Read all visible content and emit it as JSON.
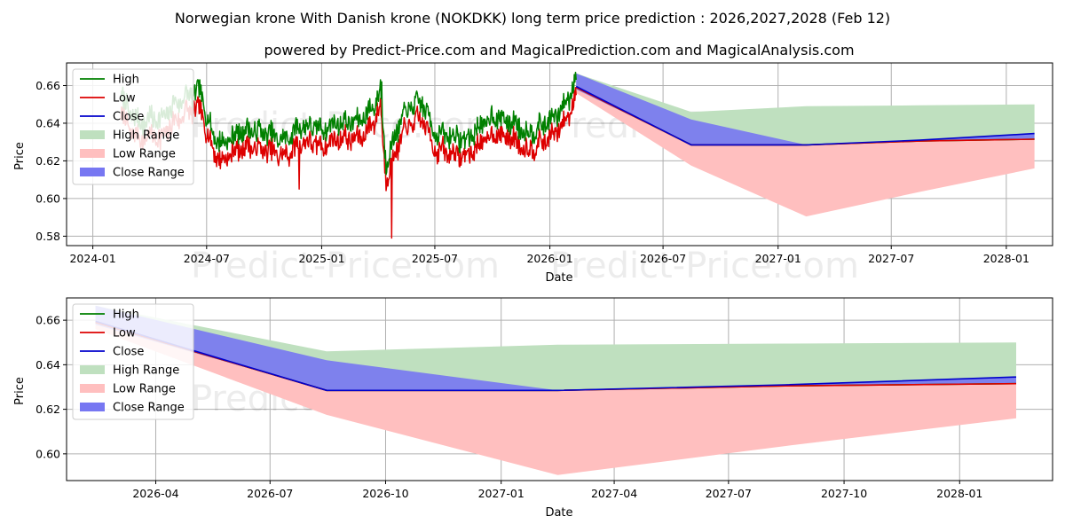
{
  "title": "Norwegian krone With Danish krone (NOKDKK) long term price prediction : 2026,2027,2028 (Feb 12)",
  "subtitle": "powered by Predict-Price.com and MagicalPrediction.com and MagicalAnalysis.com",
  "watermark": "Predict-Price.com",
  "colors": {
    "high": "#008000",
    "low": "#dd0000",
    "close": "#0000cc",
    "high_range": "#bfe0bf",
    "low_range": "#ffbfbf",
    "close_range": "#7777f2"
  },
  "legend": [
    "High",
    "Low",
    "Close",
    "High Range",
    "Low Range",
    "Close Range"
  ],
  "chart_data": [
    {
      "type": "line",
      "name": "history-and-forecast",
      "xlabel": "Date",
      "ylabel": "Price",
      "xlim": [
        "2023-11-20",
        "2028-03-15"
      ],
      "ylim": [
        0.575,
        0.672
      ],
      "x_ticks": [
        "2024-01",
        "2024-07",
        "2025-01",
        "2025-07",
        "2026-01",
        "2026-07",
        "2027-01",
        "2027-07",
        "2028-01"
      ],
      "y_ticks": [
        0.58,
        0.6,
        0.62,
        0.64,
        0.66
      ],
      "y_tick_labels": [
        "0.58",
        "0.60",
        "0.62",
        "0.64",
        "0.66"
      ],
      "legend_position": "top-left",
      "grid": true,
      "history_anchors": [
        [
          "2024-02-15",
          0.65
        ],
        [
          "2024-03-01",
          0.64
        ],
        [
          "2024-03-20",
          0.635
        ],
        [
          "2024-04-05",
          0.638
        ],
        [
          "2024-04-20",
          0.636
        ],
        [
          "2024-05-10",
          0.645
        ],
        [
          "2024-06-01",
          0.65
        ],
        [
          "2024-06-20",
          0.652
        ],
        [
          "2024-07-01",
          0.64
        ],
        [
          "2024-07-10",
          0.63
        ],
        [
          "2024-07-25",
          0.624
        ],
        [
          "2024-08-10",
          0.628
        ],
        [
          "2024-09-01",
          0.632
        ],
        [
          "2024-10-01",
          0.63
        ],
        [
          "2024-11-01",
          0.626
        ],
        [
          "2024-12-01",
          0.634
        ],
        [
          "2025-01-01",
          0.632
        ],
        [
          "2025-02-01",
          0.636
        ],
        [
          "2025-03-01",
          0.636
        ],
        [
          "2025-03-25",
          0.644
        ],
        [
          "2025-04-05",
          0.654
        ],
        [
          "2025-04-10",
          0.628
        ],
        [
          "2025-04-14",
          0.615
        ],
        [
          "2025-04-22",
          0.622
        ],
        [
          "2025-05-10",
          0.638
        ],
        [
          "2025-05-25",
          0.644
        ],
        [
          "2025-06-10",
          0.646
        ],
        [
          "2025-06-20",
          0.64
        ],
        [
          "2025-07-01",
          0.63
        ],
        [
          "2025-08-01",
          0.628
        ],
        [
          "2025-08-20",
          0.626
        ],
        [
          "2025-09-10",
          0.633
        ],
        [
          "2025-10-01",
          0.638
        ],
        [
          "2025-11-01",
          0.636
        ],
        [
          "2025-11-25",
          0.63
        ],
        [
          "2025-12-20",
          0.634
        ],
        [
          "2026-01-15",
          0.64
        ],
        [
          "2026-02-01",
          0.65
        ],
        [
          "2026-02-12",
          0.66
        ]
      ],
      "history_spikes": [
        {
          "date": "2024-04-18",
          "low": 0.626
        },
        {
          "date": "2024-11-26",
          "low": 0.605
        },
        {
          "date": "2025-04-07",
          "high": 0.662
        },
        {
          "date": "2025-04-23",
          "low": 0.579
        }
      ],
      "forecast": {
        "dates": [
          "2026-02-12",
          "2026-08-15",
          "2027-02-15",
          "2027-08-15",
          "2028-02-15"
        ],
        "close": [
          0.6595,
          0.6285,
          0.6285,
          0.631,
          0.6345
        ],
        "high_range": {
          "upper": [
            0.6665,
            0.646,
            0.649,
            0.6495,
            0.65
          ],
          "lower": [
            0.659,
            0.6285,
            0.6285,
            0.6305,
            0.6315
          ]
        },
        "low_range": {
          "upper": [
            0.659,
            0.6285,
            0.6285,
            0.6305,
            0.6315
          ],
          "lower": [
            0.656,
            0.6175,
            0.5905,
            0.6035,
            0.616
          ]
        },
        "close_range": {
          "upper": [
            0.6665,
            0.642,
            0.6285,
            0.631,
            0.6345
          ],
          "lower": [
            0.658,
            0.6285,
            0.6285,
            0.6305,
            0.6315
          ]
        }
      }
    },
    {
      "type": "line",
      "name": "forecast-zoom",
      "xlabel": "Date",
      "ylabel": "Price",
      "xlim": [
        "2026-01-20",
        "2028-03-15"
      ],
      "ylim": [
        0.588,
        0.67
      ],
      "x_ticks": [
        "2026-04",
        "2026-07",
        "2026-10",
        "2027-01",
        "2027-04",
        "2027-07",
        "2027-10",
        "2028-01"
      ],
      "y_ticks": [
        0.6,
        0.62,
        0.64,
        0.66
      ],
      "y_tick_labels": [
        "0.60",
        "0.62",
        "0.64",
        "0.66"
      ],
      "legend_position": "top-left",
      "grid": true
    }
  ]
}
